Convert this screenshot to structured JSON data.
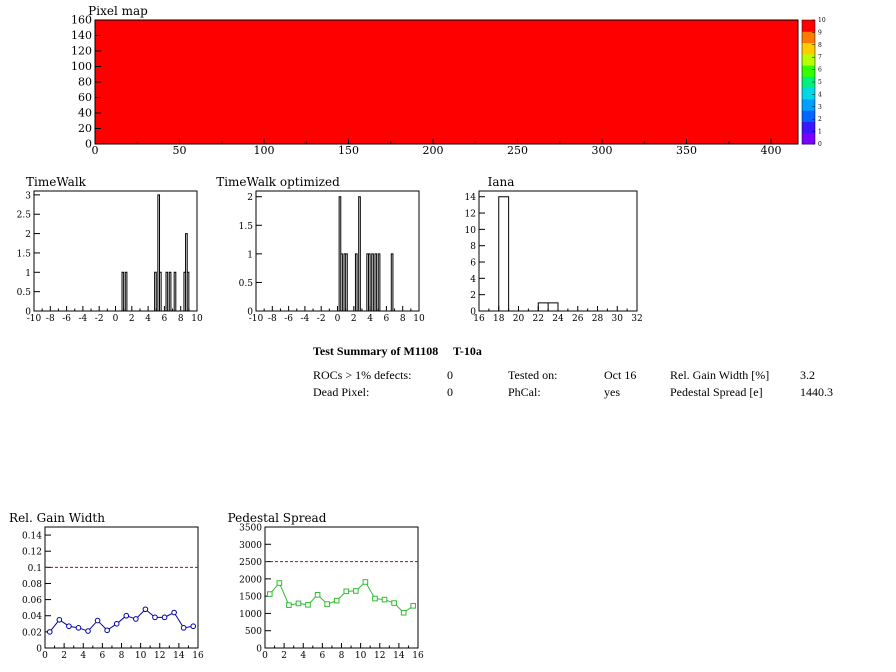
{
  "charts": {
    "pixel_map": {
      "type": "heatmap",
      "title": "Pixel map",
      "xlim": [
        0,
        416
      ],
      "ylim": [
        0,
        160
      ],
      "x_ticks": [
        0,
        50,
        100,
        150,
        200,
        250,
        300,
        350,
        400
      ],
      "y_ticks": [
        0,
        20,
        40,
        60,
        80,
        100,
        120,
        140,
        160
      ],
      "fill_value": 10,
      "color_scale": {
        "range": [
          0,
          10
        ],
        "ticks": [
          0,
          1,
          2,
          3,
          4,
          5,
          6,
          7,
          8,
          9,
          10
        ],
        "colors": [
          "#7a00ff",
          "#3a18ff",
          "#0066ff",
          "#00a0ff",
          "#00d8e8",
          "#00f080",
          "#33ff00",
          "#b8ff00",
          "#ffcc00",
          "#ff7a00",
          "#ff0000"
        ]
      }
    },
    "timewalk": {
      "type": "bar",
      "title": "TimeWalk",
      "xlim": [
        -10,
        10
      ],
      "ylim": [
        0,
        3.1
      ],
      "x_ticks": [
        -10,
        -8,
        -6,
        -4,
        -2,
        0,
        2,
        4,
        6,
        8,
        10
      ],
      "y_ticks": [
        0,
        0.5,
        1,
        1.5,
        2,
        2.5,
        3
      ],
      "bin_width": 0.2,
      "bins": [
        [
          0.8,
          1
        ],
        [
          1.2,
          1
        ],
        [
          4.8,
          1
        ],
        [
          5.2,
          3
        ],
        [
          5.4,
          1
        ],
        [
          6.2,
          1
        ],
        [
          6.6,
          1
        ],
        [
          7.2,
          1
        ],
        [
          8.4,
          1
        ],
        [
          8.6,
          2
        ],
        [
          8.8,
          1
        ]
      ]
    },
    "timewalk_optimized": {
      "type": "bar",
      "title": "TimeWalk optimized",
      "xlim": [
        -10,
        10
      ],
      "ylim": [
        0,
        2.1
      ],
      "x_ticks": [
        -10,
        -8,
        -6,
        -4,
        -2,
        0,
        2,
        4,
        6,
        8,
        10
      ],
      "y_ticks": [
        0,
        0.5,
        1,
        1.5,
        2
      ],
      "bin_width": 0.2,
      "bins": [
        [
          0.2,
          2
        ],
        [
          0.4,
          1
        ],
        [
          0.8,
          1
        ],
        [
          1.0,
          1
        ],
        [
          2.2,
          1
        ],
        [
          2.6,
          2
        ],
        [
          3.6,
          1
        ],
        [
          3.8,
          1
        ],
        [
          4.2,
          1
        ],
        [
          4.6,
          1
        ],
        [
          5.0,
          1
        ],
        [
          6.6,
          1
        ]
      ]
    },
    "iana": {
      "type": "bar",
      "title": "Iana",
      "xlim": [
        16,
        32
      ],
      "ylim": [
        0,
        14.7
      ],
      "x_ticks": [
        16,
        18,
        20,
        22,
        24,
        26,
        28,
        30,
        32
      ],
      "y_ticks": [
        0,
        2,
        4,
        6,
        8,
        10,
        12,
        14
      ],
      "bin_width": 1,
      "bins": [
        [
          18,
          14
        ],
        [
          22,
          1
        ],
        [
          23,
          1
        ]
      ]
    },
    "rel_gain_width": {
      "type": "line",
      "title": "Rel. Gain Width",
      "xlim": [
        0,
        16
      ],
      "ylim": [
        0,
        0.15
      ],
      "x_ticks": [
        0,
        2,
        4,
        6,
        8,
        10,
        12,
        14,
        16
      ],
      "y_ticks": [
        0,
        0.02,
        0.04,
        0.06,
        0.08,
        0.1,
        0.12,
        0.14
      ],
      "x": [
        0.5,
        1.5,
        2.5,
        3.5,
        4.5,
        5.5,
        6.5,
        7.5,
        8.5,
        9.5,
        10.5,
        11.5,
        12.5,
        13.5,
        14.5,
        15.5
      ],
      "y": [
        0.02,
        0.035,
        0.027,
        0.025,
        0.021,
        0.034,
        0.022,
        0.03,
        0.04,
        0.036,
        0.048,
        0.038,
        0.038,
        0.044,
        0.025,
        0.027
      ],
      "threshold": 0.1,
      "color": "#0000aa",
      "marker": "circle"
    },
    "pedestal_spread": {
      "type": "line",
      "title": "Pedestal Spread",
      "xlim": [
        0,
        16
      ],
      "ylim": [
        0,
        3500
      ],
      "x_ticks": [
        0,
        2,
        4,
        6,
        8,
        10,
        12,
        14,
        16
      ],
      "y_ticks": [
        0,
        500,
        1000,
        1500,
        2000,
        2500,
        3000,
        3500
      ],
      "x": [
        0.5,
        1.5,
        2.5,
        3.5,
        4.5,
        5.5,
        6.5,
        7.5,
        8.5,
        9.5,
        10.5,
        11.5,
        12.5,
        13.5,
        14.5,
        15.5
      ],
      "y": [
        1560,
        1880,
        1240,
        1290,
        1250,
        1540,
        1270,
        1370,
        1640,
        1650,
        1910,
        1430,
        1400,
        1300,
        1020,
        1220
      ],
      "threshold": 2500,
      "color": "#33bb33",
      "marker": "square"
    }
  },
  "summary": {
    "title": "Test Summary of M1108     T-10a",
    "rocs_label": "ROCs > 1% defects:",
    "rocs_value": "0",
    "dead_label": "Dead Pixel:",
    "dead_value": "0",
    "tested_label": "Tested on:",
    "tested_value": "Oct 16",
    "phcal_label": "PhCal:",
    "phcal_value": "yes",
    "gain_label": "Rel. Gain Width [%]",
    "gain_value": "3.2",
    "pedestal_label": "Pedestal Spread [e]",
    "pedestal_value": "1440.3"
  }
}
